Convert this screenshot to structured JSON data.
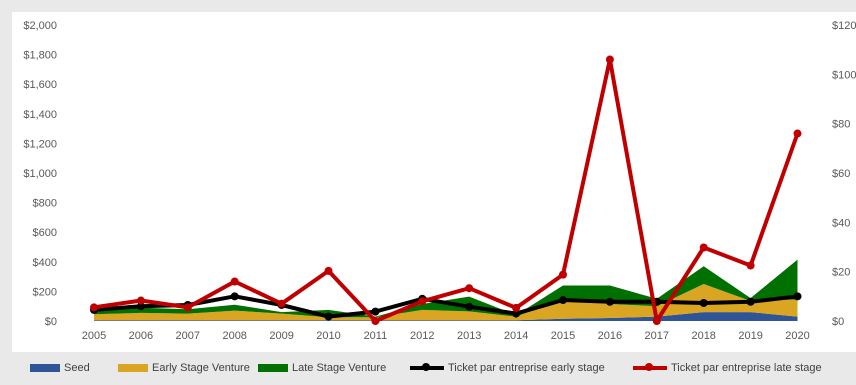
{
  "chart_data": {
    "type": "area",
    "title": "",
    "categories": [
      "2005",
      "2006",
      "2007",
      "2008",
      "2009",
      "2010",
      "2011",
      "2012",
      "2013",
      "2014",
      "2015",
      "2016",
      "2017",
      "2018",
      "2019",
      "2020"
    ],
    "y_left": {
      "range": [
        0,
        2000
      ],
      "ticks": [
        "$0",
        "$200",
        "$400",
        "$600",
        "$800",
        "$1,000",
        "$1,200",
        "$1,400",
        "$1,600",
        "$1,800",
        "$2,000"
      ]
    },
    "y_right": {
      "range": [
        0,
        120
      ],
      "ticks": [
        "$0",
        "$20",
        "$40",
        "$60",
        "$80",
        "$100",
        "$120"
      ]
    },
    "series": [
      {
        "name": "Seed",
        "type": "stacked-area",
        "axis": "left",
        "color": "#2f5597",
        "values": [
          5,
          5,
          5,
          5,
          5,
          5,
          5,
          5,
          5,
          5,
          15,
          20,
          30,
          60,
          60,
          30
        ]
      },
      {
        "name": "Early Stage Venture",
        "type": "stacked-area",
        "axis": "left",
        "color": "#daa520",
        "values": [
          40,
          50,
          45,
          65,
          45,
          20,
          20,
          70,
          60,
          25,
          135,
          95,
          70,
          190,
          75,
          115
        ]
      },
      {
        "name": "Late Stage Venture",
        "type": "stacked-area",
        "axis": "left",
        "color": "#007000",
        "values": [
          25,
          35,
          30,
          40,
          10,
          50,
          5,
          40,
          100,
          10,
          90,
          125,
          50,
          120,
          20,
          270
        ]
      },
      {
        "name": "Ticket par entreprise early stage",
        "type": "line",
        "axis": "right",
        "color": "#000000",
        "values": [
          4.5,
          6,
          6.5,
          10,
          6.5,
          1.8,
          3.8,
          9,
          5.8,
          3,
          8.5,
          7.8,
          7.8,
          7.3,
          7.8,
          10
        ]
      },
      {
        "name": "Ticket par entreprise late stage",
        "type": "line",
        "axis": "right",
        "color": "#c00000",
        "values": [
          5.5,
          8.3,
          5.5,
          16,
          7,
          20.3,
          0,
          8,
          13.3,
          5.3,
          18.8,
          106,
          0,
          29.8,
          22.5,
          76
        ]
      }
    ],
    "legend_position": "bottom",
    "grid": false
  }
}
